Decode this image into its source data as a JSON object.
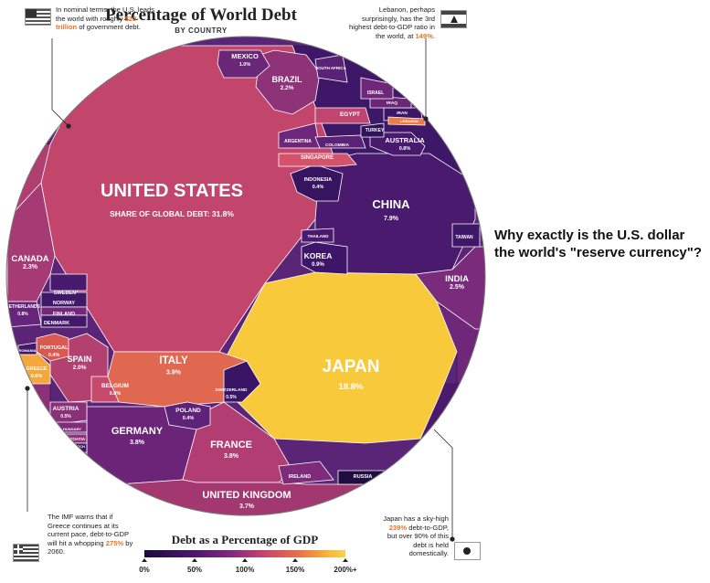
{
  "header": {
    "title": "Percentage of World Debt",
    "subtitle": "BY COUNTRY"
  },
  "notes": {
    "us": {
      "prefix": "In nominal terms, the U.S. leads the world with roughly ",
      "highlight": "$20 trillion",
      "suffix": " of government debt."
    },
    "lebanon": {
      "prefix": "Lebanon, perhaps surprisingly, has the 3rd highest debt-to-GDP ratio in the world, at ",
      "highlight": "149%",
      "suffix": "."
    },
    "greece": {
      "prefix": "The IMF warns that if Greece continues at its current pace, debt-to-GDP will hit a whopping ",
      "highlight": "275%",
      "suffix": " by 2060."
    },
    "japan": {
      "prefix": "Japan has a sky-high ",
      "highlight": "239%",
      "suffix": " debt-to-GDP, but over 90% of this debt is held domestically."
    }
  },
  "question": "Why exactly is the U.S. dollar the world's \"reserve currency\"?",
  "legend": {
    "title": "Debt as a Percentage of GDP",
    "ticks": [
      "0%",
      "50%",
      "100%",
      "150%",
      "200%+"
    ],
    "tick_values": [
      0,
      50,
      100,
      150,
      200
    ]
  },
  "chart_data": {
    "type": "voronoi_treemap",
    "title": "Percentage of World Debt",
    "subtitle": "BY COUNTRY",
    "value_label": "SHARE OF GLOBAL DEBT",
    "color_scale": "Debt as a Percentage of GDP",
    "countries": [
      {
        "name": "UNITED STATES",
        "share": "31.8%",
        "debt_to_gdp": 105,
        "color": "#c2456c"
      },
      {
        "name": "JAPAN",
        "share": "18.8%",
        "debt_to_gdp": 239,
        "color": "#f8c93a"
      },
      {
        "name": "CHINA",
        "share": "7.9%",
        "debt_to_gdp": 47,
        "color": "#4a1a6e"
      },
      {
        "name": "ITALY",
        "share": "3.9%",
        "debt_to_gdp": 133,
        "color": "#e06850"
      },
      {
        "name": "GERMANY",
        "share": "3.8%",
        "debt_to_gdp": 68,
        "color": "#6c2479"
      },
      {
        "name": "FRANCE",
        "share": "3.8%",
        "debt_to_gdp": 97,
        "color": "#b13d72"
      },
      {
        "name": "UNITED KINGDOM",
        "share": "3.7%",
        "debt_to_gdp": 89,
        "color": "#a3376f"
      },
      {
        "name": "INDIA",
        "share": "2.5%",
        "debt_to_gdp": 70,
        "color": "#7a2b7c"
      },
      {
        "name": "CANADA",
        "share": "2.3%",
        "debt_to_gdp": 92,
        "color": "#a53a74"
      },
      {
        "name": "BRAZIL",
        "share": "2.2%",
        "debt_to_gdp": 78,
        "color": "#8f3379"
      },
      {
        "name": "SPAIN",
        "share": "2.0%",
        "debt_to_gdp": 99,
        "color": "#b24170"
      },
      {
        "name": "MEXICO",
        "share": "1.0%",
        "debt_to_gdp": 58,
        "color": "#6a2778"
      },
      {
        "name": "KOREA",
        "share": "0.9%",
        "debt_to_gdp": 38,
        "color": "#3d166a"
      },
      {
        "name": "AUSTRALIA",
        "share": "0.8%",
        "debt_to_gdp": 41,
        "color": "#481a6e"
      },
      {
        "name": "BELGIUM",
        "share": "0.8%",
        "debt_to_gdp": 105,
        "color": "#c74a6c"
      },
      {
        "name": "NETHERLANDS",
        "share": "0.8%",
        "debt_to_gdp": 57,
        "color": "#66247a"
      },
      {
        "name": "AUSTRIA",
        "share": "0.5%",
        "debt_to_gdp": 78,
        "color": "#8a3079"
      },
      {
        "name": "SWITZERLAND",
        "share": "0.5%",
        "debt_to_gdp": 32,
        "color": "#3a1566"
      },
      {
        "name": "GREECE",
        "share": "0.6%",
        "debt_to_gdp": 181,
        "color": "#f4a73c"
      },
      {
        "name": "PORTUGAL",
        "share": "0.4%",
        "debt_to_gdp": 126,
        "color": "#d9584f"
      },
      {
        "name": "POLAND",
        "share": "0.4%",
        "debt_to_gdp": 54,
        "color": "#5e2378"
      },
      {
        "name": "INDONESIA",
        "share": "0.4%",
        "debt_to_gdp": 28,
        "color": "#361460"
      },
      {
        "name": "SINGAPORE",
        "share": "",
        "debt_to_gdp": 112,
        "color": "#d4526a"
      },
      {
        "name": "EGYPT",
        "share": "",
        "debt_to_gdp": 101,
        "color": "#c04670"
      },
      {
        "name": "ARGENTINA",
        "share": "",
        "debt_to_gdp": 57,
        "color": "#6d2679"
      },
      {
        "name": "COLOMBIA",
        "share": "",
        "debt_to_gdp": 50,
        "color": "#5c2277"
      },
      {
        "name": "TURKEY",
        "share": "",
        "debt_to_gdp": 28,
        "color": "#2f1257"
      },
      {
        "name": "IRAN",
        "share": "",
        "debt_to_gdp": 35,
        "color": "#3b1667"
      },
      {
        "name": "IRAQ",
        "share": "",
        "debt_to_gdp": 59,
        "color": "#6c2679"
      },
      {
        "name": "ISRAEL",
        "share": "",
        "debt_to_gdp": 60,
        "color": "#6f2779"
      },
      {
        "name": "SOUTH AFRICA",
        "share": "",
        "debt_to_gdp": 53,
        "color": "#5a2276"
      },
      {
        "name": "LEBANON",
        "share": "",
        "debt_to_gdp": 149,
        "color": "#ec7a44"
      },
      {
        "name": "THAILAND",
        "share": "",
        "debt_to_gdp": 42,
        "color": "#4a1a6e"
      },
      {
        "name": "TAIWAN",
        "share": "",
        "debt_to_gdp": 35,
        "color": "#3e1769"
      },
      {
        "name": "SWEDEN",
        "share": "",
        "debt_to_gdp": 41,
        "color": "#471a6d"
      },
      {
        "name": "NORWAY",
        "share": "",
        "debt_to_gdp": 36,
        "color": "#401868"
      },
      {
        "name": "FINLAND",
        "share": "",
        "debt_to_gdp": 64,
        "color": "#732879"
      },
      {
        "name": "DENMARK",
        "share": "",
        "debt_to_gdp": 37,
        "color": "#421868"
      },
      {
        "name": "ROMANIA",
        "share": "",
        "debt_to_gdp": 38,
        "color": "#431869"
      },
      {
        "name": "HUNGARY",
        "share": "",
        "debt_to_gdp": 74,
        "color": "#7f2c7b"
      },
      {
        "name": "CROATIA",
        "share": "",
        "debt_to_gdp": 84,
        "color": "#903279"
      },
      {
        "name": "CZECH",
        "share": "",
        "debt_to_gdp": 35,
        "color": "#3d1767"
      },
      {
        "name": "IRELAND",
        "share": "",
        "debt_to_gdp": 73,
        "color": "#7d2b7a"
      },
      {
        "name": "RUSSIA",
        "share": "",
        "debt_to_gdp": 17,
        "color": "#1f0c40"
      }
    ]
  }
}
